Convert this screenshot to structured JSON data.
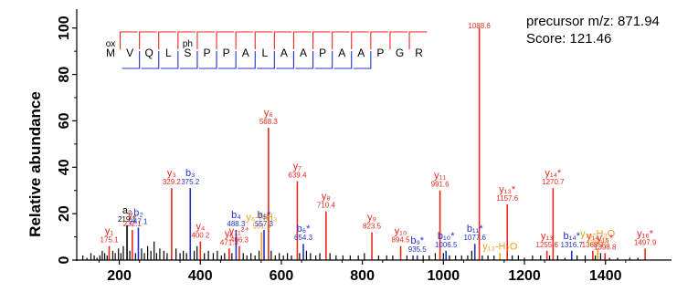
{
  "chart_data": {
    "type": "bar",
    "title": "",
    "xlabel": "",
    "ylabel": "Relative abundance",
    "xlim": [
      95,
      1545
    ],
    "ylim": [
      0,
      105
    ],
    "x_ticks": [
      "200",
      "400",
      "600",
      "800",
      "1000",
      "1200",
      "1400"
    ],
    "y_ticks": [
      "0",
      "20",
      "40",
      "60",
      "80",
      "100"
    ],
    "info": {
      "precursor": "precursor m/z: 871.94",
      "score": "Score: 121.46"
    },
    "colors": {
      "y": "#e8291c",
      "b": "#2233cc",
      "a": "#000000",
      "neutral_loss": "#f0a01e",
      "other": "#000000",
      "connector": "#777777"
    },
    "sequence": {
      "residues": [
        "M",
        "V",
        "Q",
        "L",
        "S",
        "P",
        "P",
        "A",
        "L",
        "A",
        "A",
        "P",
        "A",
        "A",
        "P",
        "G",
        "R"
      ],
      "modifications": [
        {
          "position": 0,
          "label": "ox"
        },
        {
          "position": 4,
          "label": "ph"
        }
      ],
      "y_breaks": [
        0,
        1,
        2,
        3,
        4,
        5,
        6,
        7,
        8,
        9,
        10,
        11,
        12,
        13,
        14,
        15
      ],
      "b_breaks": [
        1,
        2,
        3,
        4,
        5,
        6,
        7,
        8,
        9,
        10,
        11,
        12,
        13
      ]
    },
    "annotated_peaks": [
      {
        "name": "y₁",
        "mz_label": "175.1",
        "x": 175.1,
        "y": 6,
        "type": "y"
      },
      {
        "name": "a₂",
        "mz_label": "219.1",
        "x": 219.1,
        "y": 15,
        "type": "a"
      },
      {
        "name": "y₂",
        "mz_label": "232.1",
        "x": 232.1,
        "y": 13,
        "type": "y"
      },
      {
        "name": "b₂",
        "mz_label": "247.1",
        "x": 247.1,
        "y": 14,
        "type": "b"
      },
      {
        "name": "y₃",
        "mz_label": "329.2",
        "x": 329.2,
        "y": 31,
        "type": "y"
      },
      {
        "name": "b₃",
        "mz_label": "375.2",
        "x": 375.2,
        "y": 31,
        "type": "b"
      },
      {
        "name": "y₄",
        "mz_label": "400.2",
        "x": 400.2,
        "y": 8,
        "type": "y"
      },
      {
        "name": "y₅",
        "mz_label": "471.3",
        "x": 471.3,
        "y": 5,
        "type": "y"
      },
      {
        "name": "b₄",
        "mz_label": "488.3",
        "x": 488.3,
        "y": 13,
        "type": "b"
      },
      {
        "name": "y₁₁²⁺",
        "mz_label": "496.3",
        "x": 496.3,
        "y": 6,
        "type": "y"
      },
      {
        "name": "y₆-NH₃",
        "mz_label": "551.3",
        "x": 551.3,
        "y": 12,
        "type": "nl"
      },
      {
        "name": "b₅*",
        "mz_label": "557.3",
        "x": 557.3,
        "y": 13,
        "type": "b"
      },
      {
        "name": "y₆",
        "mz_label": "568.3",
        "x": 568.3,
        "y": 57,
        "type": "y"
      },
      {
        "name": "y₇",
        "mz_label": "639.4",
        "x": 639.4,
        "y": 34,
        "type": "y"
      },
      {
        "name": "b₆*",
        "mz_label": "654.3",
        "x": 654.3,
        "y": 7,
        "type": "b"
      },
      {
        "name": "y₈",
        "mz_label": "710.4",
        "x": 710.4,
        "y": 21,
        "type": "y"
      },
      {
        "name": "y₉",
        "mz_label": "823.5",
        "x": 823.5,
        "y": 12,
        "type": "y"
      },
      {
        "name": "y₁₀",
        "mz_label": "894.5",
        "x": 894.5,
        "y": 6,
        "type": "y"
      },
      {
        "name": "b₉*",
        "mz_label": "935.5",
        "x": 935.5,
        "y": 2,
        "type": "b"
      },
      {
        "name": "y₁₁",
        "mz_label": "991.6",
        "x": 991.6,
        "y": 30,
        "type": "y"
      },
      {
        "name": "b₁₀*",
        "mz_label": "1006.5",
        "x": 1006.5,
        "y": 4,
        "type": "b"
      },
      {
        "name": "b₁₁*",
        "mz_label": "1077.6",
        "x": 1077.6,
        "y": 7,
        "type": "b"
      },
      {
        "name": "",
        "mz_label": "1088.6",
        "x": 1088.6,
        "y": 100,
        "type": "y"
      },
      {
        "name": "y₁₃-H₂O",
        "mz_label": "",
        "x": 1139.6,
        "y": 3,
        "type": "nl"
      },
      {
        "name": "y₁₃*",
        "mz_label": "1157.6",
        "x": 1157.6,
        "y": 24,
        "type": "y"
      },
      {
        "name": "y₁₃",
        "mz_label": "1255.6",
        "x": 1255.6,
        "y": 4,
        "type": "y"
      },
      {
        "name": "y₁₄*",
        "mz_label": "1270.7",
        "x": 1270.7,
        "y": 31,
        "type": "y"
      },
      {
        "name": "b₁₄*",
        "mz_label": "1316.7",
        "x": 1316.7,
        "y": 4,
        "type": "b"
      },
      {
        "name": "y₁₄",
        "mz_label": "1368.7",
        "x": 1368.7,
        "y": 4,
        "type": "y"
      },
      {
        "name": "y₁₅-H₂O",
        "mz_label": "1380.8",
        "x": 1380.8,
        "y": 5,
        "type": "nl"
      },
      {
        "name": "y₁₅*",
        "mz_label": "1398.8",
        "x": 1398.8,
        "y": 3,
        "type": "y"
      },
      {
        "name": "y₁₆*",
        "mz_label": "1497.9",
        "x": 1497.9,
        "y": 5,
        "type": "y"
      }
    ],
    "unlabeled_peaks": [
      {
        "x": 110,
        "y": 2
      },
      {
        "x": 120,
        "y": 1
      },
      {
        "x": 130,
        "y": 3
      },
      {
        "x": 138,
        "y": 2
      },
      {
        "x": 145,
        "y": 1
      },
      {
        "x": 152,
        "y": 2
      },
      {
        "x": 158,
        "y": 4
      },
      {
        "x": 164,
        "y": 3
      },
      {
        "x": 170,
        "y": 2
      },
      {
        "x": 184,
        "y": 4
      },
      {
        "x": 190,
        "y": 3
      },
      {
        "x": 198,
        "y": 5
      },
      {
        "x": 204,
        "y": 3
      },
      {
        "x": 210,
        "y": 6
      },
      {
        "x": 226,
        "y": 4
      },
      {
        "x": 240,
        "y": 3
      },
      {
        "x": 255,
        "y": 5
      },
      {
        "x": 262,
        "y": 3
      },
      {
        "x": 270,
        "y": 6
      },
      {
        "x": 278,
        "y": 4
      },
      {
        "x": 286,
        "y": 8
      },
      {
        "x": 292,
        "y": 3
      },
      {
        "x": 300,
        "y": 5
      },
      {
        "x": 310,
        "y": 4
      },
      {
        "x": 318,
        "y": 3
      },
      {
        "x": 340,
        "y": 5
      },
      {
        "x": 350,
        "y": 3
      },
      {
        "x": 358,
        "y": 4
      },
      {
        "x": 366,
        "y": 3
      },
      {
        "x": 385,
        "y": 4
      },
      {
        "x": 392,
        "y": 6
      },
      {
        "x": 410,
        "y": 3
      },
      {
        "x": 420,
        "y": 4
      },
      {
        "x": 432,
        "y": 3
      },
      {
        "x": 442,
        "y": 4
      },
      {
        "x": 452,
        "y": 2
      },
      {
        "x": 460,
        "y": 3
      },
      {
        "x": 478,
        "y": 3
      },
      {
        "x": 506,
        "y": 3
      },
      {
        "x": 515,
        "y": 2
      },
      {
        "x": 525,
        "y": 3
      },
      {
        "x": 535,
        "y": 2
      },
      {
        "x": 545,
        "y": 4
      },
      {
        "x": 575,
        "y": 4
      },
      {
        "x": 585,
        "y": 2
      },
      {
        "x": 595,
        "y": 3
      },
      {
        "x": 605,
        "y": 2
      },
      {
        "x": 615,
        "y": 3
      },
      {
        "x": 625,
        "y": 2
      },
      {
        "x": 645,
        "y": 3
      },
      {
        "x": 662,
        "y": 4
      },
      {
        "x": 672,
        "y": 3
      },
      {
        "x": 685,
        "y": 2
      },
      {
        "x": 695,
        "y": 3
      },
      {
        "x": 720,
        "y": 3
      },
      {
        "x": 735,
        "y": 2
      },
      {
        "x": 752,
        "y": 2
      },
      {
        "x": 770,
        "y": 2
      },
      {
        "x": 790,
        "y": 2
      },
      {
        "x": 805,
        "y": 3
      },
      {
        "x": 840,
        "y": 2
      },
      {
        "x": 860,
        "y": 2
      },
      {
        "x": 875,
        "y": 2
      },
      {
        "x": 910,
        "y": 2
      },
      {
        "x": 925,
        "y": 2
      },
      {
        "x": 950,
        "y": 2
      },
      {
        "x": 965,
        "y": 2
      },
      {
        "x": 980,
        "y": 3
      },
      {
        "x": 1000,
        "y": 3
      },
      {
        "x": 1015,
        "y": 2
      },
      {
        "x": 1030,
        "y": 2
      },
      {
        "x": 1045,
        "y": 2
      },
      {
        "x": 1060,
        "y": 2
      },
      {
        "x": 1070,
        "y": 4
      },
      {
        "x": 1096,
        "y": 2
      },
      {
        "x": 1110,
        "y": 2
      },
      {
        "x": 1125,
        "y": 2
      },
      {
        "x": 1170,
        "y": 2
      },
      {
        "x": 1185,
        "y": 2
      },
      {
        "x": 1200,
        "y": 1
      },
      {
        "x": 1220,
        "y": 2
      },
      {
        "x": 1240,
        "y": 2
      },
      {
        "x": 1262,
        "y": 2
      },
      {
        "x": 1282,
        "y": 2
      },
      {
        "x": 1300,
        "y": 1
      },
      {
        "x": 1330,
        "y": 2
      },
      {
        "x": 1350,
        "y": 2
      },
      {
        "x": 1375,
        "y": 2
      },
      {
        "x": 1388,
        "y": 3
      },
      {
        "x": 1410,
        "y": 1
      },
      {
        "x": 1430,
        "y": 1
      },
      {
        "x": 1460,
        "y": 1
      },
      {
        "x": 1480,
        "y": 1
      }
    ]
  }
}
